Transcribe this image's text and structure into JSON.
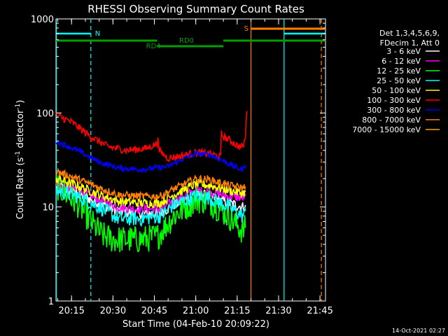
{
  "chart_data": {
    "type": "line",
    "title": "RHESSI Observing Summary Count Rates",
    "xlabel": "Start Time (04-Feb-10 20:09:22)",
    "ylabel_main": "Count Rate (s",
    "ylabel_sup1": "-1",
    "ylabel_mid": " detector",
    "ylabel_sup2": "-1",
    "ylabel_end": ")",
    "y_scale": "log",
    "ylim": [
      1,
      1000
    ],
    "y_ticks": [
      {
        "value": 1,
        "label": "1"
      },
      {
        "value": 10,
        "label": "10"
      },
      {
        "value": 100,
        "label": "100"
      },
      {
        "value": 1000,
        "label": "1000"
      }
    ],
    "xlim": [
      "20:09:22",
      "21:47:00"
    ],
    "x_ticks": [
      {
        "value": "20:15",
        "label": "20:15"
      },
      {
        "value": "20:30",
        "label": "20:30"
      },
      {
        "value": "20:45",
        "label": "20:45"
      },
      {
        "value": "21:00",
        "label": "21:00"
      },
      {
        "value": "21:15",
        "label": "21:15"
      },
      {
        "value": "21:30",
        "label": "21:30"
      },
      {
        "value": "21:45",
        "label": "21:45"
      }
    ],
    "legend_header": [
      "Det 1,3,4,5,6,9,",
      "FDecim 1, Att 0"
    ],
    "legend_placement": "right",
    "series": [
      {
        "name": "3 - 6 keV",
        "color": "#ffffff",
        "points": [
          [
            "20:09:22",
            17
          ],
          [
            "20:17",
            14
          ],
          [
            "20:25",
            11
          ],
          [
            "20:32",
            9
          ],
          [
            "20:40",
            8.5
          ],
          [
            "20:47",
            8.6
          ],
          [
            "20:52",
            10.5
          ],
          [
            "21:00",
            13.5
          ],
          [
            "21:05",
            13
          ],
          [
            "21:12",
            11
          ],
          [
            "21:17",
            10
          ],
          [
            "21:18",
            10.5
          ]
        ]
      },
      {
        "name": "6 - 12 keV",
        "color": "#ff00ff",
        "points": [
          [
            "20:09:22",
            17
          ],
          [
            "20:17",
            15.5
          ],
          [
            "20:25",
            12
          ],
          [
            "20:32",
            10
          ],
          [
            "20:40",
            9.5
          ],
          [
            "20:47",
            9.5
          ],
          [
            "20:52",
            11.5
          ],
          [
            "21:00",
            15
          ],
          [
            "21:05",
            14.5
          ],
          [
            "21:12",
            13
          ],
          [
            "21:17",
            12.5
          ],
          [
            "21:18",
            13
          ]
        ]
      },
      {
        "name": "12 - 25 keV",
        "color": "#00ff00",
        "points": [
          [
            "20:09:22",
            17
          ],
          [
            "20:17",
            11
          ],
          [
            "20:22",
            7
          ],
          [
            "20:26",
            5
          ],
          [
            "20:30",
            4.5
          ],
          [
            "20:40",
            4.5
          ],
          [
            "20:46",
            4.8
          ],
          [
            "20:52",
            8
          ],
          [
            "21:00",
            12
          ],
          [
            "21:05",
            11.5
          ],
          [
            "21:12",
            8
          ],
          [
            "21:17",
            5.5
          ],
          [
            "21:18",
            6
          ]
        ]
      },
      {
        "name": "25 - 50 keV",
        "color": "#00ffff",
        "points": [
          [
            "20:09:22",
            15
          ],
          [
            "20:17",
            13
          ],
          [
            "20:25",
            10
          ],
          [
            "20:32",
            7.5
          ],
          [
            "20:40",
            7.5
          ],
          [
            "20:47",
            8
          ],
          [
            "20:52",
            10.5
          ],
          [
            "21:00",
            13
          ],
          [
            "21:05",
            12.5
          ],
          [
            "21:12",
            10
          ],
          [
            "21:17",
            8
          ],
          [
            "21:18",
            9
          ]
        ]
      },
      {
        "name": "50 - 100 keV",
        "color": "#ffff00",
        "points": [
          [
            "20:09:22",
            20
          ],
          [
            "20:17",
            17
          ],
          [
            "20:25",
            13.5
          ],
          [
            "20:32",
            11.5
          ],
          [
            "20:40",
            11
          ],
          [
            "20:47",
            11
          ],
          [
            "20:52",
            13.5
          ],
          [
            "21:00",
            17.5
          ],
          [
            "21:05",
            17
          ],
          [
            "21:12",
            15
          ],
          [
            "21:17",
            14
          ],
          [
            "21:18",
            14.5
          ]
        ]
      },
      {
        "name": "100 - 300 keV",
        "color": "#ff0000",
        "points": [
          [
            "20:09:22",
            95
          ],
          [
            "20:15",
            80
          ],
          [
            "20:22",
            56
          ],
          [
            "20:28",
            44
          ],
          [
            "20:35",
            40
          ],
          [
            "20:42",
            42
          ],
          [
            "20:46",
            47
          ],
          [
            "20:46.3",
            60
          ],
          [
            "20:46.6",
            40
          ],
          [
            "20:50",
            33
          ],
          [
            "20:55",
            35
          ],
          [
            "21:00",
            38
          ],
          [
            "21:05",
            37
          ],
          [
            "21:09",
            34
          ],
          [
            "21:09.3",
            60
          ],
          [
            "21:10",
            56
          ],
          [
            "21:12",
            52
          ],
          [
            "21:15",
            45
          ],
          [
            "21:17",
            43
          ],
          [
            "21:18",
            55
          ],
          [
            "21:18.5",
            105
          ]
        ]
      },
      {
        "name": "300 - 800 keV",
        "color": "#0000ff",
        "points": [
          [
            "20:09:22",
            50
          ],
          [
            "20:17",
            40
          ],
          [
            "20:25",
            30
          ],
          [
            "20:32",
            26
          ],
          [
            "20:40",
            25
          ],
          [
            "20:46",
            26
          ],
          [
            "20:50",
            27
          ],
          [
            "20:55",
            32
          ],
          [
            "21:00",
            37
          ],
          [
            "21:05",
            36
          ],
          [
            "21:10",
            31
          ],
          [
            "21:15",
            26
          ],
          [
            "21:17",
            25
          ],
          [
            "21:18",
            28
          ]
        ]
      },
      {
        "name": "800 - 7000 keV",
        "color": "#ff8000",
        "points": [
          [
            "20:09:22",
            24
          ],
          [
            "20:17",
            20
          ],
          [
            "20:25",
            16
          ],
          [
            "20:32",
            13.5
          ],
          [
            "20:40",
            13
          ],
          [
            "20:47",
            13
          ],
          [
            "20:52",
            15.5
          ],
          [
            "21:00",
            20
          ],
          [
            "21:05",
            19.5
          ],
          [
            "21:12",
            17
          ],
          [
            "21:17",
            16
          ],
          [
            "21:18",
            16.5
          ]
        ]
      },
      {
        "name": "7000 - 15000 keV",
        "color": "#ffa500",
        "points": []
      }
    ],
    "annotations": [
      {
        "text": "N",
        "color": "#00ffff"
      },
      {
        "text": "S",
        "color": "#ff8000"
      },
      {
        "text": "RD0",
        "color": "#00a000"
      },
      {
        "text": "RD4",
        "color": "#00a000"
      }
    ],
    "flags": {
      "night": [
        [
          "20:09:22",
          "20:22"
        ],
        [
          "21:32",
          "21:47"
        ]
      ],
      "saa": [
        [
          "21:20",
          "21:47"
        ]
      ],
      "rd0": [
        [
          "20:09:22",
          "20:46"
        ],
        [
          "21:10",
          "21:47"
        ]
      ],
      "rd4": [
        [
          "20:46",
          "21:10"
        ]
      ]
    },
    "vlines": [
      {
        "time": "20:09:30",
        "color": "#00ffff",
        "style": "solid"
      },
      {
        "time": "20:22",
        "color": "#00ffff",
        "style": "dashed"
      },
      {
        "time": "21:20",
        "color": "#ff8000",
        "style": "solid"
      },
      {
        "time": "21:32",
        "color": "#00ffff",
        "style": "solid"
      },
      {
        "time": "21:45.5",
        "color": "#ff8000",
        "style": "dashed"
      }
    ]
  },
  "footer": {
    "date": "14-Oct-2021 02:27"
  }
}
